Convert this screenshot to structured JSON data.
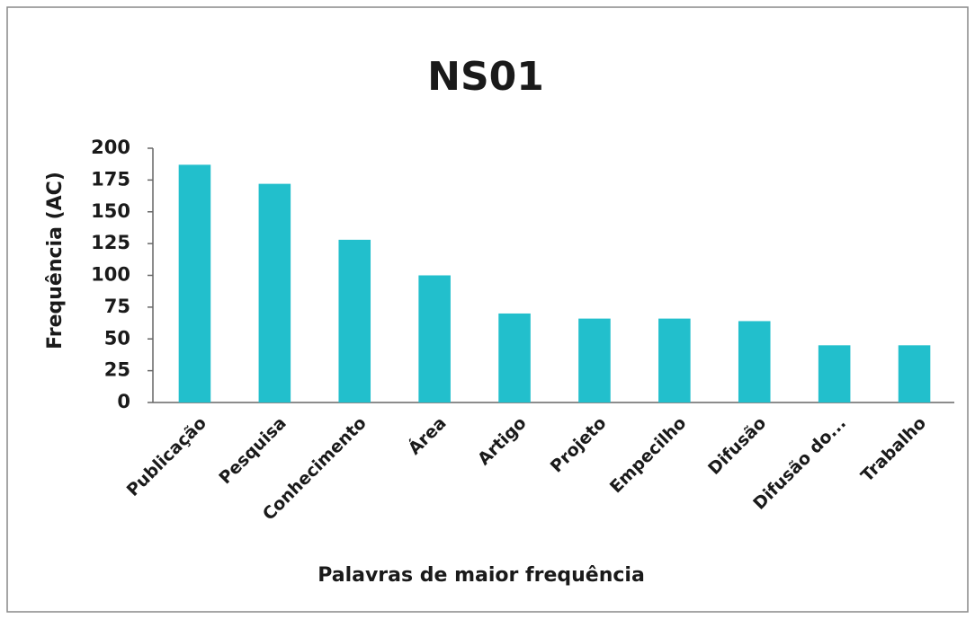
{
  "chart_data": {
    "type": "bar",
    "title": "NS01",
    "x_label": "Palavras de maior frequência",
    "y_label": "Frequência (AC)",
    "categories": [
      "Publicação",
      "Pesquisa",
      "Conhecimento",
      "Área",
      "Artigo",
      "Projeto",
      "Empecilho",
      "Difusão",
      "Difusão do...",
      "Trabalho"
    ],
    "values": [
      187,
      172,
      128,
      100,
      70,
      66,
      66,
      64,
      45,
      45
    ],
    "color": "#22bfcc",
    "ylim": [
      0,
      200
    ],
    "yticks": [
      0,
      25,
      50,
      75,
      100,
      125,
      150,
      175,
      200
    ],
    "grid": false
  }
}
